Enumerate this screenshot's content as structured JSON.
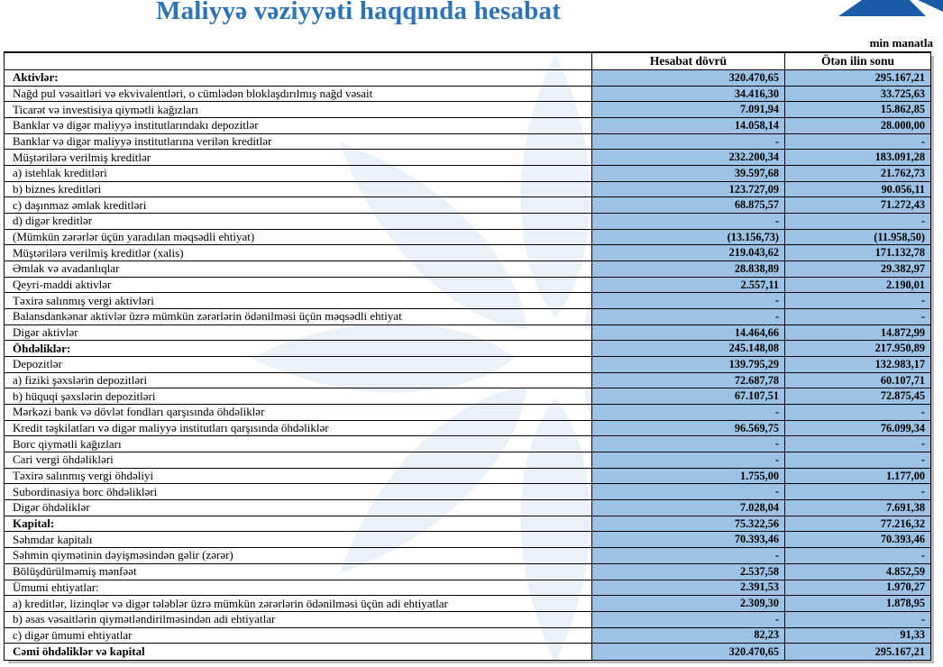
{
  "page": {
    "title": "Maliyyə vəziyyəti haqqında hesabat",
    "unit_note": "min manatla",
    "logo_icon": "mountain-peak-logo",
    "watermark_icon": "eight-petal-flower-watermark"
  },
  "colors": {
    "title_blue": "#2E74B5",
    "value_cell_blue": "#9CC2E5",
    "logo_blue": "#1A5CA8",
    "watermark_blue": "#EAF1F9",
    "border_black": "#000000",
    "shadow_grey": "#BDBDBD"
  },
  "table": {
    "columns": {
      "label": "",
      "current": "Hesabat dövrü",
      "previous": "Ötən ilin sonu"
    },
    "rows": [
      {
        "label": "Aktivlər:",
        "bold": true,
        "current": "320.470,65",
        "previous": "295.167,21"
      },
      {
        "label": "Nağd pul vəsaitləri və  ekvivalentləri, o cümlədən bloklaşdırılmış nağd vəsait",
        "bold": false,
        "current": "34.416,30",
        "previous": "33.725,63"
      },
      {
        "label": "Ticarət və investisiya qiymətli kağızları",
        "bold": false,
        "current": "7.091,94",
        "previous": "15.862,85"
      },
      {
        "label": "Banklar və digər maliyyə institutlarındakı depozitlər",
        "bold": false,
        "current": "14.058,14",
        "previous": "28.000,00"
      },
      {
        "label": "Banklar və digər maliyyə institutlarına verilən kreditlər",
        "bold": false,
        "current": "-",
        "previous": "-"
      },
      {
        "label": "Müştərilərə verilmiş kreditlər",
        "bold": false,
        "current": "232.200,34",
        "previous": "183.091,28"
      },
      {
        "label": "a) istehlak kreditləri",
        "bold": false,
        "current": "39.597,68",
        "previous": "21.762,73"
      },
      {
        "label": "b) biznes kreditləri",
        "bold": false,
        "current": "123.727,09",
        "previous": "90.056,11"
      },
      {
        "label": "c) daşınmaz əmlak kreditləri",
        "bold": false,
        "current": "68.875,57",
        "previous": "71.272,43"
      },
      {
        "label": "d) digər kreditlər",
        "bold": false,
        "current": "-",
        "previous": "-"
      },
      {
        "label": "(Mümkün zərərlər üçün yaradılan məqsədli ehtiyat)",
        "bold": false,
        "current": "(13.156,73)",
        "previous": "(11.958,50)"
      },
      {
        "label": "Müştərilərə verilmiş kreditlər (xalis)",
        "bold": false,
        "current": "219.043,62",
        "previous": "171.132,78"
      },
      {
        "label": "Əmlak və avadanlıqlar",
        "bold": false,
        "current": "28.838,89",
        "previous": "29.382,97"
      },
      {
        "label": "Qeyri-maddi aktivlər",
        "bold": false,
        "current": "2.557,11",
        "previous": "2.190,01"
      },
      {
        "label": "Təxirə salınmış vergi aktivləri",
        "bold": false,
        "current": "-",
        "previous": "-"
      },
      {
        "label": "Balansdankənar aktivlər üzrə mümkün zərərlərin ödənilməsi üçün məqsədli ehtiyat",
        "bold": false,
        "current": "-",
        "previous": "-"
      },
      {
        "label": "Digər aktivlər",
        "bold": false,
        "current": "14.464,66",
        "previous": "14.872,99"
      },
      {
        "label": "Öhdəliklər:",
        "bold": true,
        "current": "245.148,08",
        "previous": "217.950,89"
      },
      {
        "label": "Depozitlər",
        "bold": false,
        "current": "139.795,29",
        "previous": "132.983,17"
      },
      {
        "label": "a) fiziki şəxslərin depozitləri",
        "bold": false,
        "current": "72.687,78",
        "previous": "60.107,71"
      },
      {
        "label": "b) hüquqi şəxslərin depozitləri",
        "bold": false,
        "current": "67.107,51",
        "previous": "72.875,45"
      },
      {
        "label": "Mərkəzi bank və dövlət fondları qarşısında öhdəliklər",
        "bold": false,
        "current": "-",
        "previous": "-"
      },
      {
        "label": "Kredit təşkilatları və digər maliyyə institutları qarşısında öhdəliklər",
        "bold": false,
        "current": "96.569,75",
        "previous": "76.099,34"
      },
      {
        "label": "Borc qiymətli kağızları",
        "bold": false,
        "current": "-",
        "previous": "-"
      },
      {
        "label": "Cari vergi öhdəlikləri",
        "bold": false,
        "current": "-",
        "previous": "-"
      },
      {
        "label": "Təxirə salınmış vergi öhdəliyi",
        "bold": false,
        "current": "1.755,00",
        "previous": "1.177,00"
      },
      {
        "label": "Subordinasiya borc öhdəlikləri",
        "bold": false,
        "current": "-",
        "previous": "-"
      },
      {
        "label": "Digər öhdəliklər",
        "bold": false,
        "current": "7.028,04",
        "previous": "7.691,38"
      },
      {
        "label": "Kapital:",
        "bold": true,
        "current": "75.322,56",
        "previous": "77.216,32"
      },
      {
        "label": "Səhmdar kapitalı",
        "bold": false,
        "current": "70.393,46",
        "previous": "70.393,46"
      },
      {
        "label": "Səhmin qiymətinin dəyişməsindən gəlir (zərər)",
        "bold": false,
        "current": "-",
        "previous": "-"
      },
      {
        "label": "Bölüşdürülməmiş mənfəət",
        "bold": false,
        "current": "2.537,58",
        "previous": "4.852,59"
      },
      {
        "label": "Ümumi ehtiyatlar:",
        "bold": false,
        "current": "2.391,53",
        "previous": "1.970,27"
      },
      {
        "label": "a) kreditlər, lizinqlər və digər tələblər üzrə mümkün zərərlərin ödənilməsi üçün adi ehtiyatlar",
        "bold": false,
        "current": "2.309,30",
        "previous": "1.878,95"
      },
      {
        "label": "b) əsas vəsaitlərin qiymətləndirilməsindən adi ehtiyatlar",
        "bold": false,
        "current": "-",
        "previous": "-"
      },
      {
        "label": "c) digər ümumi ehtiyatlar",
        "bold": false,
        "current": "82,23",
        "previous": "91,33"
      },
      {
        "label": "Cəmi öhdəliklər və kapital",
        "bold": true,
        "current": "320.470,65",
        "previous": "295.167,21"
      }
    ]
  }
}
